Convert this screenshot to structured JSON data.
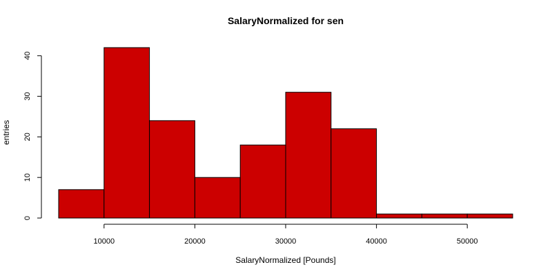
{
  "chart_data": {
    "type": "bar",
    "title": "SalaryNormalized for sen",
    "xlabel": "SalaryNormalized [Pounds]",
    "ylabel": "entries",
    "bins": [
      {
        "start": 5000,
        "end": 10000,
        "value": 7
      },
      {
        "start": 10000,
        "end": 15000,
        "value": 42
      },
      {
        "start": 15000,
        "end": 20000,
        "value": 24
      },
      {
        "start": 20000,
        "end": 25000,
        "value": 10
      },
      {
        "start": 25000,
        "end": 30000,
        "value": 18
      },
      {
        "start": 30000,
        "end": 35000,
        "value": 31
      },
      {
        "start": 35000,
        "end": 40000,
        "value": 22
      },
      {
        "start": 40000,
        "end": 45000,
        "value": 1
      },
      {
        "start": 45000,
        "end": 50000,
        "value": 1
      },
      {
        "start": 50000,
        "end": 55000,
        "value": 1
      }
    ],
    "xlim": [
      5000,
      55000
    ],
    "ylim": [
      0,
      42
    ],
    "x_ticks": [
      10000,
      20000,
      30000,
      40000,
      50000
    ],
    "y_ticks": [
      0,
      10,
      20,
      30,
      40
    ],
    "bar_color": "#cc0000",
    "grid": false
  }
}
